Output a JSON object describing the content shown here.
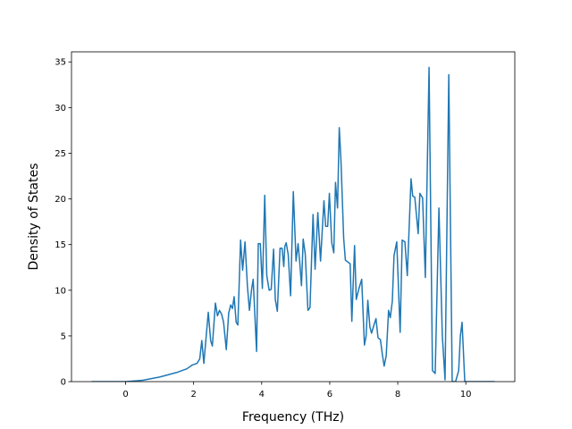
{
  "chart_data": {
    "type": "line",
    "xlabel": "Frequency (THz)",
    "ylabel": "Density of States",
    "color": "#1f77b4",
    "xlim": [
      -1.59,
      11.44
    ],
    "ylim": [
      0,
      36.1
    ],
    "xticks": [
      0,
      2,
      4,
      6,
      8,
      10
    ],
    "yticks": [
      0,
      5,
      10,
      15,
      20,
      25,
      30,
      35
    ],
    "grid": false,
    "x": [
      -1,
      0,
      0.5,
      1,
      1.5,
      1.8,
      1.95,
      2.1,
      2.18,
      2.24,
      2.3,
      2.43,
      2.5,
      2.55,
      2.64,
      2.7,
      2.76,
      2.82,
      2.88,
      2.96,
      3.03,
      3.09,
      3.14,
      3.19,
      3.25,
      3.3,
      3.38,
      3.44,
      3.51,
      3.58,
      3.64,
      3.7,
      3.75,
      3.85,
      3.9,
      3.96,
      4.02,
      4.09,
      4.15,
      4.22,
      4.28,
      4.35,
      4.4,
      4.46,
      4.54,
      4.6,
      4.65,
      4.68,
      4.72,
      4.78,
      4.85,
      4.93,
      5.01,
      5.07,
      5.12,
      5.17,
      5.22,
      5.28,
      5.36,
      5.42,
      5.51,
      5.57,
      5.65,
      5.73,
      5.83,
      5.88,
      5.94,
      5.99,
      6.06,
      6.12,
      6.17,
      6.23,
      6.28,
      6.33,
      6.41,
      6.46,
      6.6,
      6.65,
      6.73,
      6.78,
      6.86,
      6.94,
      7.02,
      7.07,
      7.12,
      7.18,
      7.23,
      7.3,
      7.36,
      7.42,
      7.49,
      7.55,
      7.6,
      7.66,
      7.73,
      7.78,
      7.84,
      7.89,
      7.97,
      8.07,
      8.13,
      8.21,
      8.28,
      8.39,
      8.44,
      8.5,
      8.6,
      8.65,
      8.73,
      8.81,
      8.92,
      9.02,
      9.1,
      9.21,
      9.31,
      9.39,
      9.5,
      9.6,
      9.7,
      9.79,
      9.84,
      9.89,
      9.97,
      10.85
    ],
    "values": [
      0,
      0,
      0.15,
      0.5,
      1.0,
      1.4,
      1.8,
      2.0,
      2.5,
      4.5,
      2.0,
      7.6,
      4.5,
      3.9,
      8.6,
      7.2,
      7.8,
      7.4,
      6.5,
      3.5,
      7.5,
      8.4,
      8.0,
      9.3,
      6.5,
      6.2,
      15.5,
      12.2,
      15.3,
      10.5,
      7.8,
      10.0,
      11.2,
      3.3,
      15.1,
      15.1,
      10.2,
      20.4,
      11.6,
      10.0,
      10.1,
      14.5,
      9.0,
      7.7,
      14.6,
      14.6,
      12.6,
      14.8,
      15.2,
      13.9,
      9.4,
      20.8,
      13.2,
      15.1,
      13.0,
      10.5,
      15.6,
      14.0,
      7.8,
      8.1,
      18.3,
      12.3,
      18.5,
      13.2,
      19.8,
      17.0,
      17.0,
      20.6,
      15.2,
      14.1,
      21.8,
      19.0,
      27.8,
      24.3,
      15.7,
      13.3,
      12.9,
      6.6,
      14.9,
      9.0,
      10.2,
      11.2,
      4.0,
      5.0,
      8.9,
      6.0,
      5.3,
      6.2,
      6.9,
      4.8,
      4.6,
      2.9,
      1.7,
      2.8,
      7.8,
      7.0,
      8.8,
      13.8,
      15.3,
      5.4,
      15.5,
      15.3,
      11.6,
      22.2,
      20.3,
      20.2,
      16.2,
      20.6,
      20.1,
      11.4,
      34.4,
      1.2,
      0.9,
      19.0,
      5.0,
      0.2,
      33.6,
      0,
      0,
      1.2,
      5.0,
      6.5,
      0,
      0
    ]
  }
}
